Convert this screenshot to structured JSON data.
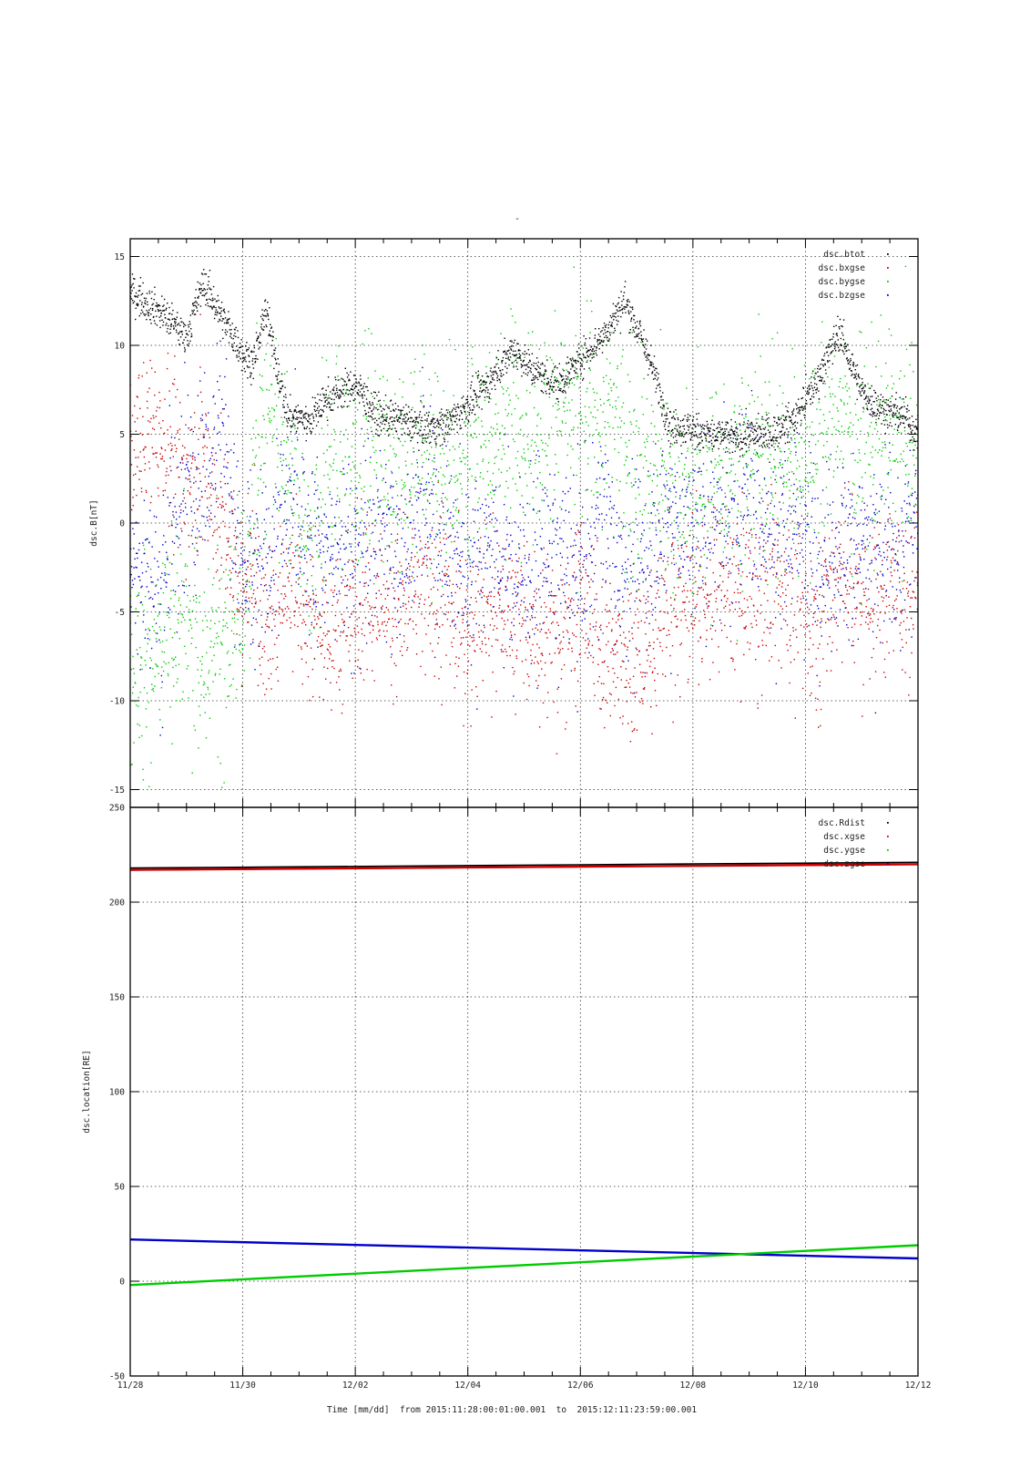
{
  "header": {
    "title_mark": "-"
  },
  "footer": {
    "time_caption": "Time [mm/dd]  from 2015:11:28:00:01:00.001  to  2015:12:11:23:59:00.001"
  },
  "colors": {
    "black": "#000000",
    "red": "#cc0000",
    "green": "#00cc00",
    "blue": "#0000cc",
    "grid": "#333333"
  },
  "chart_data": [
    {
      "type": "scatter",
      "ylabel": "dsc.B[nT]",
      "xlabel": "Time [mm/dd]",
      "x_ticks": [
        "11/28",
        "11/30",
        "12/02",
        "12/04",
        "12/06",
        "12/08",
        "12/10",
        "12/12"
      ],
      "xlim": [
        0,
        14
      ],
      "ylim": [
        -16,
        16
      ],
      "y_ticks": [
        15,
        10,
        5,
        0,
        -5,
        -10,
        -15
      ],
      "grid": true,
      "legend_position": "top-right",
      "series": [
        {
          "name": "dsc.btot",
          "color": "#000000",
          "x": [
            0,
            0.5,
            1,
            1.3,
            1.6,
            2,
            2.2,
            2.4,
            2.8,
            3.2,
            3.5,
            4,
            4.4,
            4.8,
            5.2,
            5.6,
            6,
            6.4,
            6.8,
            7.2,
            7.6,
            8,
            8.4,
            8.8,
            9.2,
            9.6,
            10,
            10.4,
            10.8,
            11,
            11.4,
            11.8,
            12.2,
            12.6,
            13,
            13.4,
            13.8,
            14
          ],
          "y": [
            13,
            12,
            10.5,
            13.5,
            11.8,
            9.5,
            9.0,
            12.0,
            6.0,
            5.8,
            7.0,
            7.8,
            6.0,
            5.8,
            5.4,
            5.5,
            6.6,
            8.0,
            9.8,
            8.5,
            7.8,
            9.2,
            10.5,
            12.5,
            9.5,
            5.4,
            5.3,
            4.9,
            4.8,
            5.0,
            5.0,
            5.8,
            8.0,
            10.8,
            7.3,
            6.3,
            6.0,
            4.8
          ]
        },
        {
          "name": "dsc.bxgse",
          "color": "#cc0000",
          "x": [
            0,
            0.5,
            1,
            1.3,
            1.6,
            2,
            2.2,
            2.4,
            2.8,
            3.2,
            3.5,
            4,
            4.4,
            4.8,
            5.2,
            5.6,
            6,
            6.4,
            6.8,
            7.2,
            7.6,
            8,
            8.4,
            8.8,
            9.2,
            9.6,
            10,
            10.4,
            10.8,
            11,
            11.4,
            11.8,
            12.2,
            12.6,
            13,
            13.4,
            13.8,
            14
          ],
          "y": [
            4.0,
            5.5,
            2.0,
            4.5,
            0.0,
            -3.5,
            -3.0,
            -7.0,
            -3.0,
            -4.5,
            -6.5,
            -5.0,
            -4.5,
            -4.2,
            -4.5,
            -4.0,
            -6.0,
            -4.5,
            -5.0,
            -6.5,
            -6.0,
            -4.5,
            -7.0,
            -8.0,
            -7.0,
            -4.0,
            -4.5,
            -4.0,
            -4.0,
            -4.5,
            -3.0,
            -4.0,
            -5.5,
            -2.5,
            -4.0,
            -3.5,
            -4.0,
            -3.0
          ]
        },
        {
          "name": "dsc.bygse",
          "color": "#00cc00",
          "x": [
            0,
            0.5,
            1,
            1.3,
            1.6,
            2,
            2.2,
            2.4,
            2.8,
            3.2,
            3.5,
            4,
            4.4,
            4.8,
            5.2,
            5.6,
            6,
            6.4,
            6.8,
            7.2,
            7.6,
            8,
            8.4,
            8.8,
            9.2,
            9.6,
            10,
            10.4,
            10.8,
            11,
            11.4,
            11.8,
            12.2,
            12.6,
            13,
            13.4,
            13.8,
            14
          ],
          "y": [
            -9.0,
            -7.0,
            -5.0,
            -8.0,
            -6.0,
            -5.5,
            2.0,
            6.0,
            2.5,
            -2.0,
            3.0,
            3.5,
            4.5,
            2.5,
            4.0,
            3.5,
            3.5,
            4.5,
            6.0,
            5.0,
            6.5,
            5.5,
            6.0,
            4.5,
            3.0,
            2.0,
            1.5,
            2.5,
            3.0,
            4.0,
            4.0,
            3.5,
            4.5,
            6.0,
            4.0,
            5.0,
            4.5,
            3.5
          ]
        },
        {
          "name": "dsc.bzgse",
          "color": "#0000cc",
          "x": [
            0,
            0.5,
            1,
            1.3,
            1.6,
            2,
            2.2,
            2.4,
            2.8,
            3.2,
            3.5,
            4,
            4.4,
            4.8,
            5.2,
            5.6,
            6,
            6.4,
            6.8,
            7.2,
            7.6,
            8,
            8.4,
            8.8,
            9.2,
            9.6,
            10,
            10.4,
            10.8,
            11,
            11.4,
            11.8,
            12.2,
            12.6,
            13,
            13.4,
            13.8,
            14
          ],
          "y": [
            -2.0,
            -4.0,
            2.0,
            4.0,
            6.0,
            -3.0,
            -2.5,
            -2.0,
            1.0,
            -1.0,
            -2.0,
            -1.5,
            0.0,
            -1.5,
            1.0,
            -1.0,
            -2.5,
            -1.0,
            -3.0,
            -2.0,
            -1.5,
            -3.0,
            0.5,
            -3.0,
            -2.0,
            0.5,
            -0.5,
            0.0,
            0.5,
            2.0,
            -1.0,
            0.5,
            -2.0,
            -1.0,
            -1.5,
            -2.0,
            -1.0,
            -0.5
          ]
        }
      ]
    },
    {
      "type": "line",
      "ylabel": "dsc.location[RE]",
      "xlabel": "Time [mm/dd]",
      "x_ticks": [
        "11/28",
        "11/30",
        "12/02",
        "12/04",
        "12/06",
        "12/08",
        "12/10",
        "12/12"
      ],
      "xlim": [
        0,
        14
      ],
      "ylim": [
        -50,
        250
      ],
      "y_ticks": [
        250,
        200,
        150,
        100,
        50,
        0,
        -50
      ],
      "grid": true,
      "legend_position": "top-right",
      "series": [
        {
          "name": "dsc.Rdist",
          "color": "#000000",
          "x": [
            0,
            14
          ],
          "y": [
            218,
            221
          ]
        },
        {
          "name": "dsc.xgse",
          "color": "#cc0000",
          "x": [
            0,
            14
          ],
          "y": [
            217,
            220
          ]
        },
        {
          "name": "dsc.ygse",
          "color": "#00cc00",
          "x": [
            0,
            14
          ],
          "y": [
            -2,
            19
          ]
        },
        {
          "name": "dsc.zgse",
          "color": "#0000cc",
          "x": [
            0,
            14
          ],
          "y": [
            22,
            12
          ]
        }
      ]
    }
  ]
}
